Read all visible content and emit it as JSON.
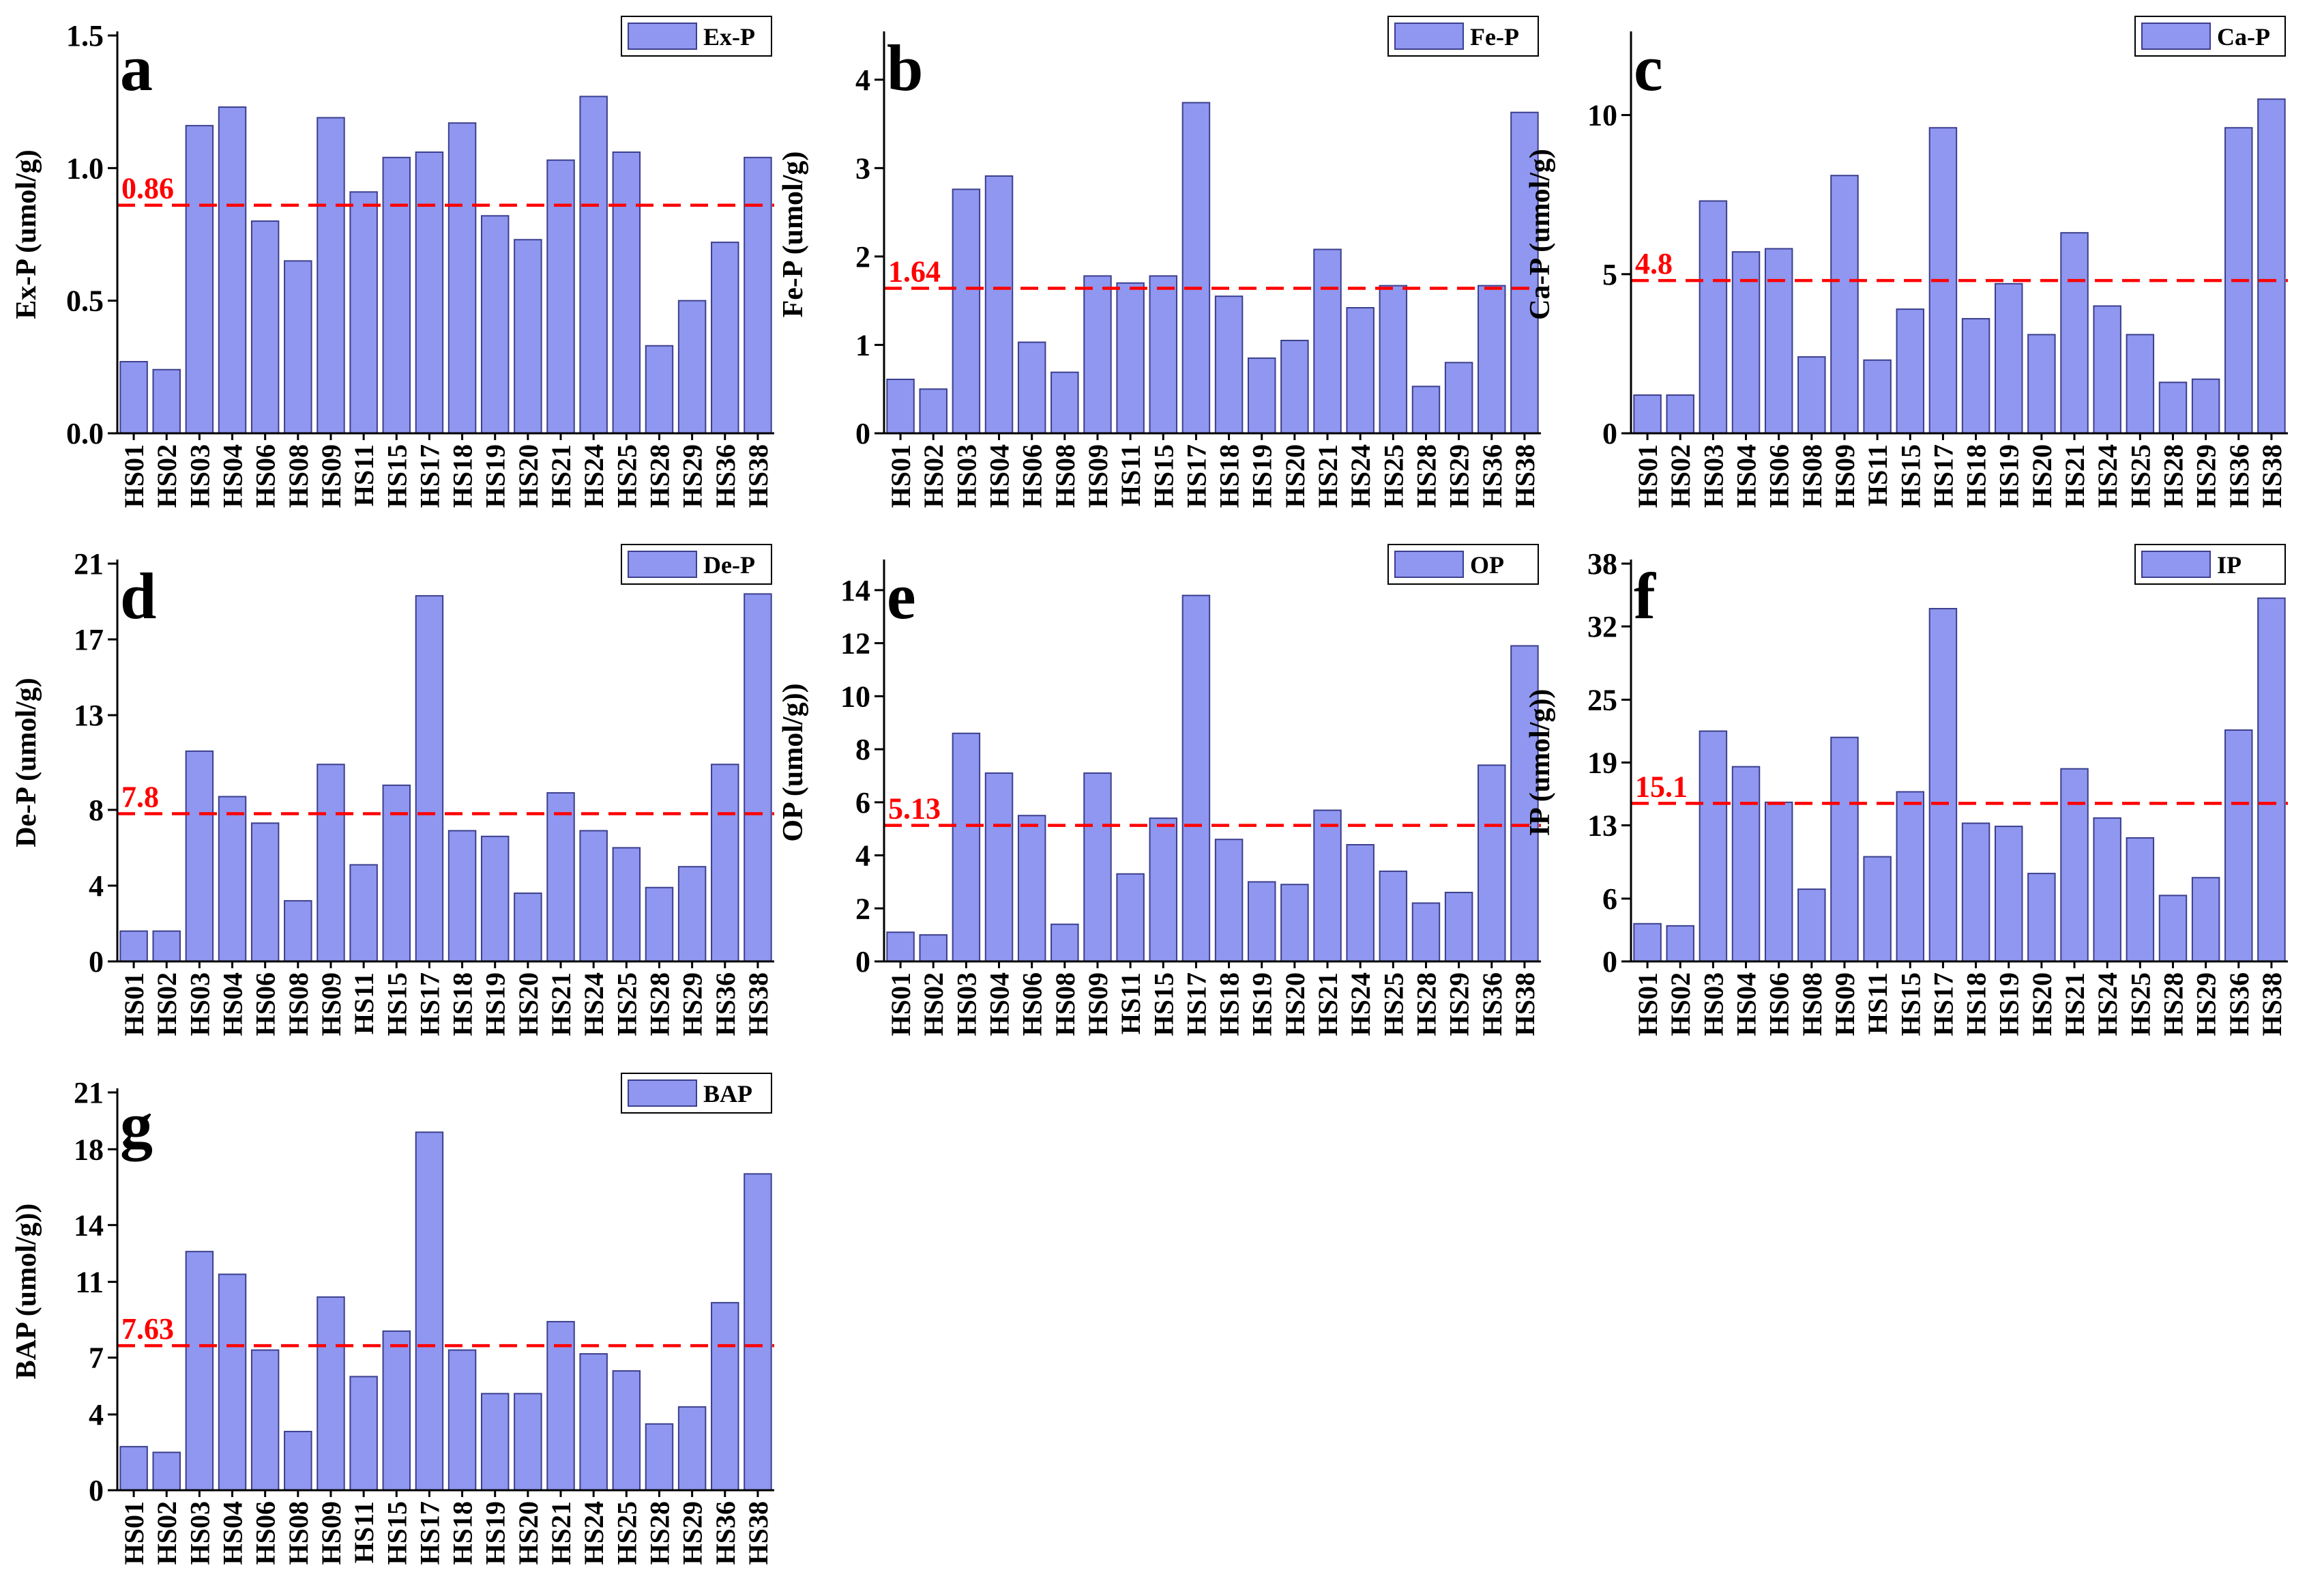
{
  "figure": {
    "bar_color": "#8f97f0",
    "bar_edge_color": "#3c3f8c",
    "mean_line_color": "#ff0000",
    "mean_label_color": "#ff0000"
  },
  "chart_data": [
    {
      "panel": "a",
      "type": "bar",
      "title": "",
      "legend": "Ex-P",
      "ylabel": "Ex-P (umol/g)",
      "xlabel": "",
      "ylim": [
        0,
        1.5
      ],
      "yticks": [
        0.0,
        0.5,
        1.0,
        1.5
      ],
      "ytick_labels": [
        "0.0",
        "0.5",
        "1.0",
        "1.5"
      ],
      "mean": 0.86,
      "mean_label": "0.86",
      "categories": [
        "HS01",
        "HS02",
        "HS03",
        "HS04",
        "HS06",
        "HS08",
        "HS09",
        "HS11",
        "HS15",
        "HS17",
        "HS18",
        "HS19",
        "HS20",
        "HS21",
        "HS24",
        "HS25",
        "HS28",
        "HS29",
        "HS36",
        "HS38"
      ],
      "values": [
        0.27,
        0.24,
        1.16,
        1.23,
        0.8,
        0.65,
        1.19,
        0.91,
        1.04,
        1.06,
        1.17,
        0.82,
        0.73,
        1.03,
        1.27,
        1.06,
        0.33,
        0.5,
        0.72,
        1.04
      ]
    },
    {
      "panel": "b",
      "type": "bar",
      "title": "",
      "legend": "Fe-P",
      "ylabel": "Fe-P (umol/g)",
      "xlabel": "",
      "ylim": [
        0,
        4.5
      ],
      "yticks": [
        0,
        1,
        2,
        3,
        4
      ],
      "ytick_labels": [
        "0",
        "1",
        "2",
        "3",
        "4"
      ],
      "mean": 1.64,
      "mean_label": "1.64",
      "categories": [
        "HS01",
        "HS02",
        "HS03",
        "HS04",
        "HS06",
        "HS08",
        "HS09",
        "HS11",
        "HS15",
        "HS17",
        "HS18",
        "HS19",
        "HS20",
        "HS21",
        "HS24",
        "HS25",
        "HS28",
        "HS29",
        "HS36",
        "HS38"
      ],
      "values": [
        0.61,
        0.5,
        2.76,
        2.91,
        1.03,
        0.69,
        1.78,
        1.7,
        1.78,
        3.74,
        1.55,
        0.85,
        1.05,
        2.08,
        1.42,
        1.67,
        0.53,
        0.8,
        1.67,
        3.63
      ]
    },
    {
      "panel": "c",
      "type": "bar",
      "title": "",
      "legend": "Ca-P",
      "ylabel": "Ca-P (umol/g)",
      "xlabel": "",
      "ylim": [
        0,
        12.5
      ],
      "yticks": [
        0,
        5,
        10
      ],
      "ytick_labels": [
        "0",
        "5",
        "10"
      ],
      "mean": 4.8,
      "mean_label": "4.8",
      "categories": [
        "HS01",
        "HS02",
        "HS03",
        "HS04",
        "HS06",
        "HS08",
        "HS09",
        "HS11",
        "HS15",
        "HS17",
        "HS18",
        "HS19",
        "HS20",
        "HS21",
        "HS24",
        "HS25",
        "HS28",
        "HS29",
        "HS36",
        "HS38"
      ],
      "values": [
        1.2,
        1.2,
        7.3,
        5.7,
        5.8,
        2.4,
        8.1,
        2.3,
        3.9,
        9.6,
        3.6,
        4.7,
        3.1,
        6.3,
        4.0,
        3.1,
        1.6,
        1.7,
        9.6,
        10.5
      ]
    },
    {
      "panel": "d",
      "type": "bar",
      "title": "",
      "legend": "De-P",
      "ylabel": "De-P (umol/g)",
      "xlabel": "",
      "ylim": [
        0,
        21
      ],
      "yticks": [
        0,
        4,
        8,
        13,
        17,
        21
      ],
      "ytick_labels": [
        "0",
        "4",
        "8",
        "13",
        "17",
        "21"
      ],
      "mean": 7.8,
      "mean_label": "7.8",
      "categories": [
        "HS01",
        "HS02",
        "HS03",
        "HS04",
        "HS06",
        "HS08",
        "HS09",
        "HS11",
        "HS15",
        "HS17",
        "HS18",
        "HS19",
        "HS20",
        "HS21",
        "HS24",
        "HS25",
        "HS28",
        "HS29",
        "HS36",
        "HS38"
      ],
      "values": [
        1.6,
        1.6,
        11.1,
        8.7,
        7.3,
        3.2,
        10.4,
        5.1,
        9.3,
        19.3,
        6.9,
        6.6,
        3.6,
        8.9,
        6.9,
        6.0,
        3.9,
        5.0,
        10.4,
        19.4
      ]
    },
    {
      "panel": "e",
      "type": "bar",
      "title": "",
      "legend": "OP",
      "ylabel": "OP (umol/g))",
      "xlabel": "",
      "ylim": [
        0,
        15
      ],
      "yticks": [
        0,
        2,
        4,
        6,
        8,
        10,
        12,
        14
      ],
      "ytick_labels": [
        "0",
        "2",
        "4",
        "6",
        "8",
        "10",
        "12",
        "14"
      ],
      "mean": 5.13,
      "mean_label": "5.13",
      "categories": [
        "HS01",
        "HS02",
        "HS03",
        "HS04",
        "HS06",
        "HS08",
        "HS09",
        "HS11",
        "HS15",
        "HS17",
        "HS18",
        "HS19",
        "HS20",
        "HS21",
        "HS24",
        "HS25",
        "HS28",
        "HS29",
        "HS36",
        "HS38"
      ],
      "values": [
        1.1,
        1.0,
        8.6,
        7.1,
        5.5,
        1.4,
        7.1,
        3.3,
        5.4,
        13.8,
        4.6,
        3.0,
        2.9,
        5.7,
        4.4,
        3.4,
        2.2,
        2.6,
        7.4,
        11.9
      ]
    },
    {
      "panel": "f",
      "type": "bar",
      "title": "",
      "legend": "IP",
      "ylabel": "IP (umol/g))",
      "xlabel": "",
      "ylim": [
        0,
        38
      ],
      "yticks": [
        0,
        6,
        13,
        19,
        25,
        32,
        38
      ],
      "ytick_labels": [
        "0",
        "6",
        "13",
        "19",
        "25",
        "32",
        "38"
      ],
      "mean": 15.1,
      "mean_label": "15.1",
      "categories": [
        "HS01",
        "HS02",
        "HS03",
        "HS04",
        "HS06",
        "HS08",
        "HS09",
        "HS11",
        "HS15",
        "HS17",
        "HS18",
        "HS19",
        "HS20",
        "HS21",
        "HS24",
        "HS25",
        "HS28",
        "HS29",
        "HS36",
        "HS38"
      ],
      "values": [
        3.6,
        3.4,
        22.0,
        18.6,
        15.2,
        6.9,
        21.4,
        10.0,
        16.2,
        33.7,
        13.2,
        12.9,
        8.4,
        18.4,
        13.7,
        11.8,
        6.3,
        8.0,
        22.1,
        34.7
      ]
    },
    {
      "panel": "g",
      "type": "bar",
      "title": "",
      "legend": "BAP",
      "ylabel": "BAP (umol/g))",
      "xlabel": "",
      "ylim": [
        0,
        21
      ],
      "yticks": [
        0,
        4,
        7,
        11,
        14,
        18,
        21
      ],
      "ytick_labels": [
        "0",
        "4",
        "7",
        "11",
        "14",
        "18",
        "21"
      ],
      "mean": 7.63,
      "mean_label": "7.63",
      "categories": [
        "HS01",
        "HS02",
        "HS03",
        "HS04",
        "HS06",
        "HS08",
        "HS09",
        "HS11",
        "HS15",
        "HS17",
        "HS18",
        "HS19",
        "HS20",
        "HS21",
        "HS24",
        "HS25",
        "HS28",
        "HS29",
        "HS36",
        "HS38"
      ],
      "values": [
        2.3,
        2.0,
        12.6,
        11.4,
        7.4,
        3.1,
        10.2,
        6.0,
        8.4,
        18.9,
        7.4,
        5.1,
        5.1,
        8.9,
        7.2,
        6.3,
        3.5,
        4.4,
        9.9,
        16.7
      ]
    }
  ]
}
